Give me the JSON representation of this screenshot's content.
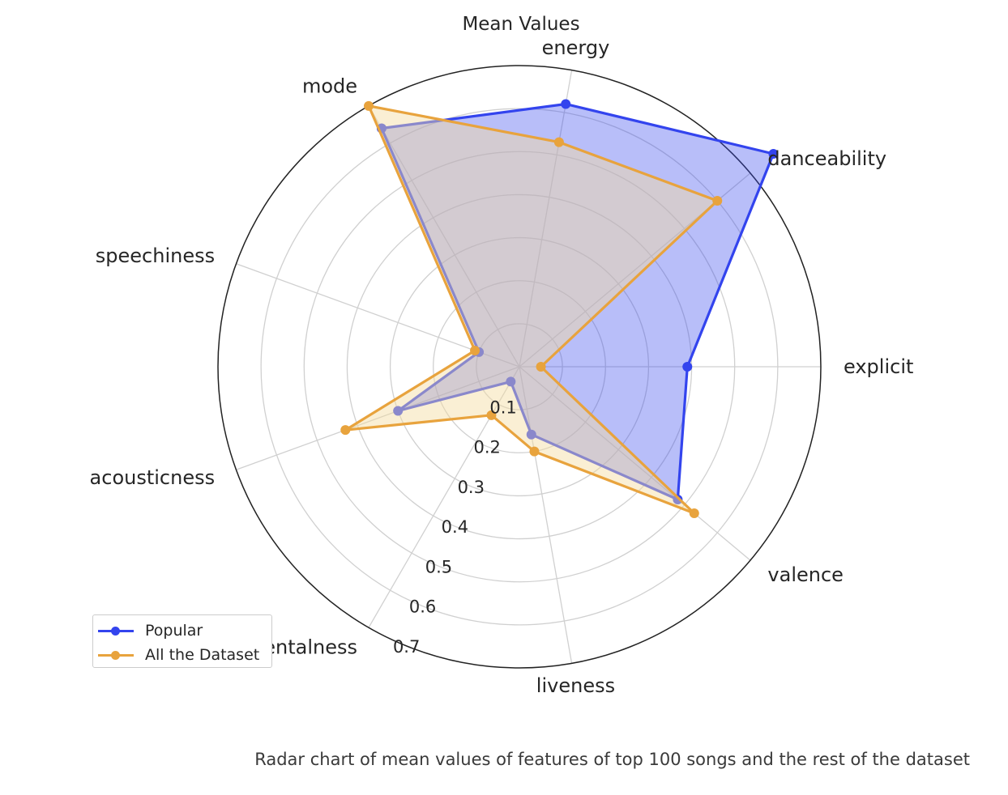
{
  "chart_data": {
    "type": "radar",
    "title": "Mean Values",
    "axes": [
      "explicit",
      "danceability",
      "energy",
      "mode",
      "speechiness",
      "acousticness",
      "instrumentalness",
      "liveness",
      "valence"
    ],
    "radial_ticks": [
      "0.1",
      "0.2",
      "0.3",
      "0.4",
      "0.5",
      "0.6",
      "0.7"
    ],
    "rlim": [
      0,
      0.7
    ],
    "grid": true,
    "legend_position": "lower-left",
    "series": [
      {
        "name": "Popular",
        "color": "#3344ee",
        "fill": "#3344ee",
        "values": [
          0.39,
          0.77,
          0.62,
          0.64,
          0.1,
          0.3,
          0.04,
          0.16,
          0.48
        ]
      },
      {
        "name": "All the Dataset",
        "color": "#e8a33d",
        "fill": "#f5dca0",
        "values": [
          0.05,
          0.6,
          0.53,
          0.7,
          0.11,
          0.43,
          0.13,
          0.2,
          0.53
        ]
      }
    ]
  },
  "caption": "Radar chart of mean values of features of top 100 songs and the rest of the dataset"
}
